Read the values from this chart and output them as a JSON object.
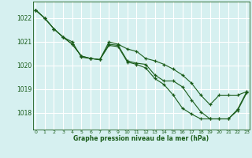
{
  "xlabel": "Graphe pression niveau de la mer (hPa)",
  "ylim": [
    1017.3,
    1022.7
  ],
  "xlim": [
    -0.3,
    23.3
  ],
  "yticks": [
    1018,
    1019,
    1020,
    1021,
    1022
  ],
  "xticks": [
    0,
    1,
    2,
    3,
    4,
    5,
    6,
    7,
    8,
    9,
    10,
    11,
    12,
    13,
    14,
    15,
    16,
    17,
    18,
    19,
    20,
    21,
    22,
    23
  ],
  "bg_color": "#d6f0f0",
  "grid_color": "#ffffff",
  "line_color": "#1a5c1a",
  "line_width": 0.8,
  "marker": "+",
  "marker_size": 3.5,
  "marker_edge_width": 0.9,
  "series": [
    [
      1022.35,
      1022.0,
      1021.55,
      1021.2,
      1021.0,
      1020.35,
      1020.3,
      1020.25,
      1020.85,
      1020.8,
      1020.15,
      1020.05,
      1019.9,
      1019.45,
      1019.2,
      1018.75,
      1018.2,
      1017.95,
      1017.75,
      1017.75,
      1017.75,
      1017.75,
      1018.1,
      1018.85
    ],
    [
      1022.35,
      1022.0,
      1021.55,
      1021.2,
      1020.9,
      1020.4,
      1020.3,
      1020.25,
      1020.9,
      1020.85,
      1020.2,
      1020.1,
      1020.05,
      1019.6,
      1019.35,
      1019.35,
      1019.1,
      1018.55,
      1018.05,
      1017.75,
      1017.75,
      1017.75,
      1018.15,
      1018.9
    ],
    [
      1022.35,
      1022.0,
      1021.55,
      1021.2,
      1020.9,
      1020.4,
      1020.3,
      1020.25,
      1021.0,
      1020.9,
      1020.7,
      1020.6,
      1020.3,
      1020.2,
      1020.05,
      1019.85,
      1019.6,
      1019.25,
      1018.75,
      1018.35,
      1018.75,
      1018.75,
      1018.75,
      1018.9
    ]
  ]
}
